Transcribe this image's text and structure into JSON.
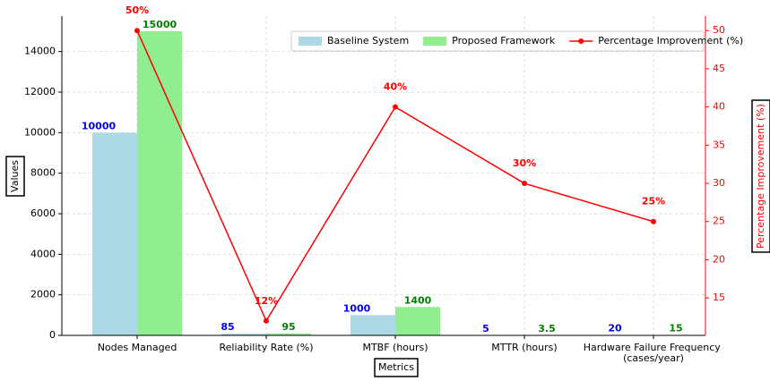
{
  "chart_data": {
    "type": "bar",
    "categories": [
      "Nodes Managed",
      "Reliability Rate (%)",
      "MTBF (hours)",
      "MTTR (hours)",
      "Hardware Failure Frequency (cases/year)"
    ],
    "series": [
      {
        "name": "Baseline System",
        "type": "bar",
        "color": "#add8e6",
        "label_color": "#0000ff",
        "values": [
          10000,
          85,
          1000,
          5,
          20
        ]
      },
      {
        "name": "Proposed Framework",
        "type": "bar",
        "color": "#90ee90",
        "label_color": "#008000",
        "values": [
          15000,
          95,
          1400,
          3.5,
          15
        ]
      },
      {
        "name": "Percentage Improvement (%)",
        "type": "line",
        "axis": "y2",
        "color": "#ff0000",
        "label_color": "#ff0000",
        "values": [
          50,
          12,
          40,
          30,
          25
        ],
        "value_labels": [
          "50%",
          "12%",
          "40%",
          "30%",
          "25%"
        ]
      }
    ],
    "xlabel": "Metrics",
    "ylabel": "Values",
    "y2label": "Percentage Improvement (%)",
    "ylim": [
      0,
      15750
    ],
    "yticks": [
      0,
      2000,
      4000,
      6000,
      8000,
      10000,
      12000,
      14000
    ],
    "y2lim": [
      10.1,
      51.9
    ],
    "y2ticks": [
      15,
      20,
      25,
      30,
      35,
      40,
      45,
      50
    ],
    "grid": true,
    "legend": "upper right"
  }
}
